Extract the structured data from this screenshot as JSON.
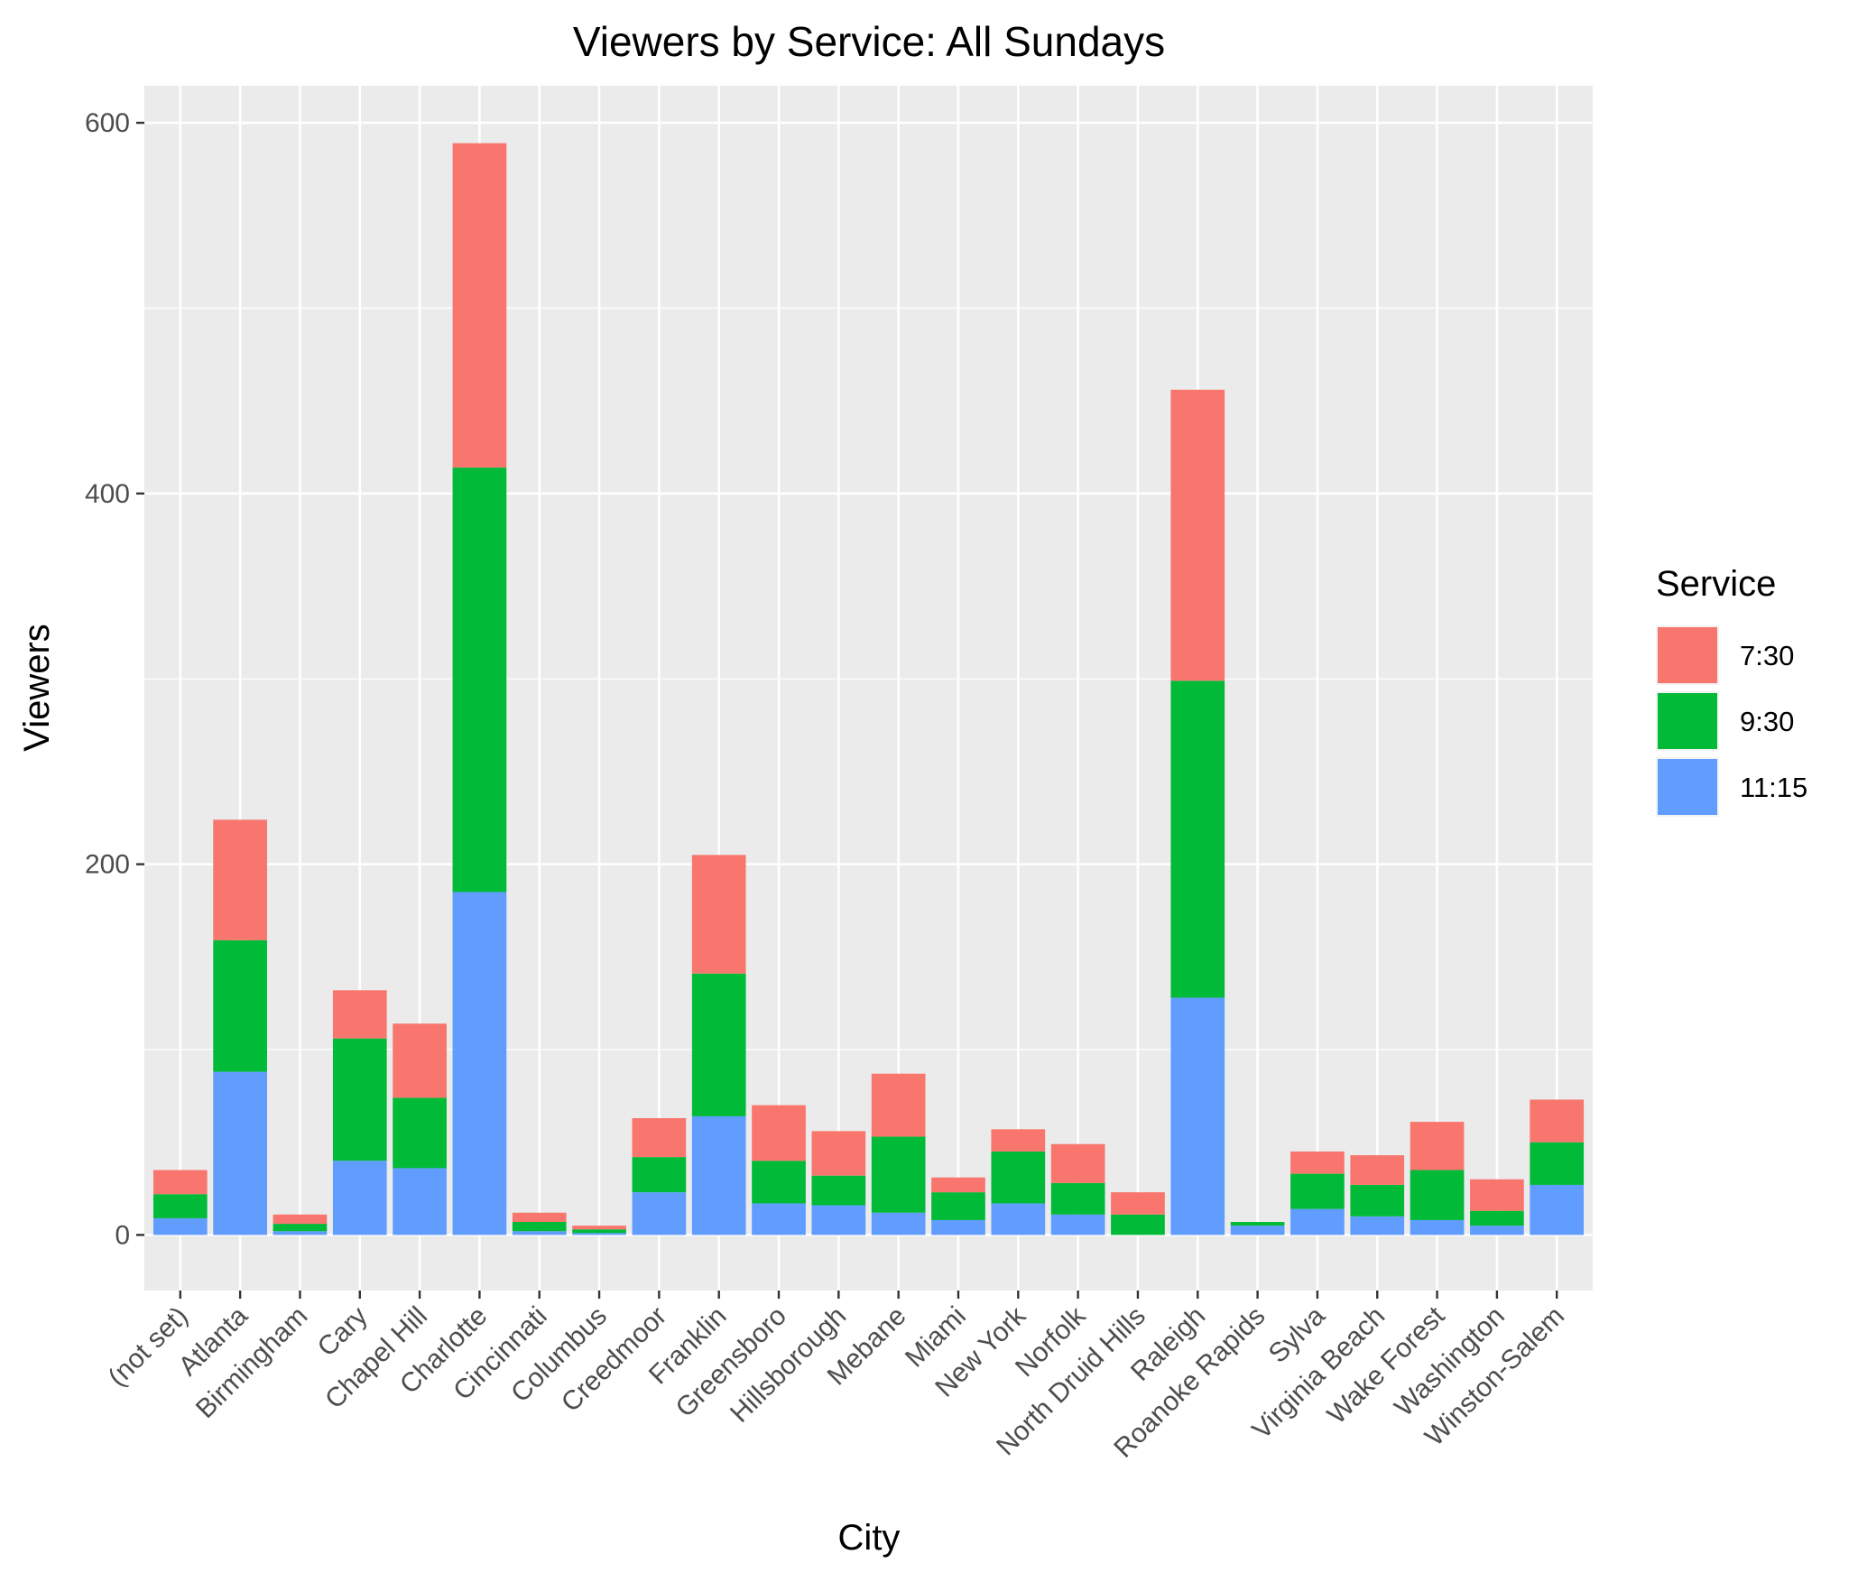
{
  "chart_data": {
    "type": "bar",
    "stacked": true,
    "title": "Viewers by Service: All Sundays",
    "xlabel": "City",
    "ylabel": "Viewers",
    "ylim": [
      -30,
      620
    ],
    "yticks": [
      0,
      200,
      400,
      600
    ],
    "grid": true,
    "legend": {
      "title": "Service",
      "position": "right"
    },
    "categories": [
      "(not set)",
      "Atlanta",
      "Birmingham",
      "Cary",
      "Chapel Hill",
      "Charlotte",
      "Cincinnati",
      "Columbus",
      "Creedmoor",
      "Franklin",
      "Greensboro",
      "Hillsborough",
      "Mebane",
      "Miami",
      "New York",
      "Norfolk",
      "North Druid Hills",
      "Raleigh",
      "Roanoke Rapids",
      "Sylva",
      "Virginia Beach",
      "Wake Forest",
      "Washington",
      "Winston-Salem"
    ],
    "series": [
      {
        "name": "7:30",
        "color": "#F8766D",
        "values": [
          13,
          65,
          5,
          26,
          40,
          175,
          5,
          2,
          21,
          64,
          30,
          24,
          34,
          8,
          12,
          21,
          12,
          157,
          0,
          12,
          16,
          26,
          17,
          23
        ]
      },
      {
        "name": "9:30",
        "color": "#00BA38",
        "values": [
          13,
          71,
          4,
          66,
          38,
          229,
          5,
          2,
          19,
          77,
          23,
          16,
          41,
          15,
          28,
          17,
          11,
          171,
          2,
          19,
          17,
          27,
          8,
          23
        ]
      },
      {
        "name": "11:15",
        "color": "#619CFF",
        "values": [
          9,
          88,
          2,
          40,
          36,
          185,
          2,
          1,
          23,
          64,
          17,
          16,
          12,
          8,
          17,
          11,
          0,
          128,
          5,
          14,
          10,
          8,
          5,
          27
        ]
      }
    ]
  }
}
